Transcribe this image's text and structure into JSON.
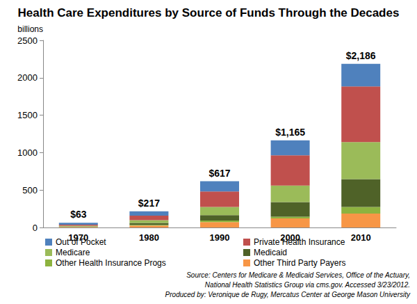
{
  "chart_data": {
    "type": "bar",
    "title": "Health Care Expenditures by Source of Funds Through the Decades",
    "y_label": "billions",
    "categories": [
      "1970",
      "1980",
      "1990",
      "2000",
      "2010"
    ],
    "series": [
      {
        "name": "Out of Pocket",
        "color": "#4f81bd",
        "values": [
          25,
          58,
          137,
          200,
          301
        ]
      },
      {
        "name": "Private Health Insurance",
        "color": "#c0504d",
        "values": [
          15,
          62,
          205,
          405,
          745
        ]
      },
      {
        "name": "Medicare",
        "color": "#9bbb59",
        "values": [
          8,
          37,
          110,
          220,
          495
        ]
      },
      {
        "name": "Medicaid",
        "color": "#4f6228",
        "values": [
          5,
          26,
          72,
          195,
          370
        ]
      },
      {
        "name": "Other Health Insurance Progs",
        "color": "#8db33f",
        "values": [
          3,
          8,
          20,
          25,
          90
        ]
      },
      {
        "name": "Other Third Party Payers",
        "color": "#f79646",
        "values": [
          7,
          26,
          73,
          120,
          185
        ]
      }
    ],
    "totals": [
      63,
      217,
      617,
      1165,
      2186
    ],
    "total_labels": [
      "$63",
      "$217",
      "$617",
      "$1,165",
      "$2,186"
    ],
    "stacked": true,
    "ylim": [
      0,
      2500
    ],
    "yticks": [
      0,
      500,
      1000,
      1500,
      2000,
      2500
    ],
    "grid": false,
    "legend": "bottom",
    "annotations": [
      "Source: Centers for Medicare & Medicaid Services, Office of the Actuary,",
      "National Health Statistics Group via cms.gov. Accessed 3/23/2012.",
      "Produced by: Veronique de Rugy, Mercatus Center at George Mason University"
    ]
  }
}
